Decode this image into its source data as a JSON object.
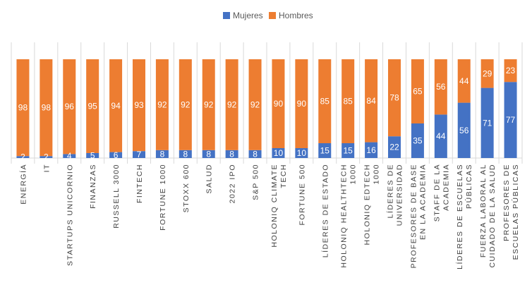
{
  "chart_data": {
    "type": "bar",
    "stacked": true,
    "title": "",
    "xlabel": "",
    "ylabel": "",
    "ylim": [
      0,
      100
    ],
    "grid": true,
    "legend_position": "top",
    "categories": [
      [
        "ENERGÍA"
      ],
      [
        "IT"
      ],
      [
        "STARTUPS UNICORNIO"
      ],
      [
        "FINANZAS"
      ],
      [
        "RUSSELL 3000"
      ],
      [
        "FINTECH"
      ],
      [
        "FORTUNE 1000"
      ],
      [
        "STOXX 600"
      ],
      [
        "SALUD"
      ],
      [
        "2022 IPO"
      ],
      [
        "S&P 500"
      ],
      [
        "HOLONIQ CLIMATE",
        "TECH"
      ],
      [
        "FORTUNE 500"
      ],
      [
        "LÍDERES DE ESTADO"
      ],
      [
        "HOLONIQ HEALTHTECH",
        "1000"
      ],
      [
        "HOLONIQ EDTECH",
        "1000"
      ],
      [
        "LÍDERES DE",
        "UNIVERSIDAD"
      ],
      [
        "PROFESORES DE BASE",
        "EN LA ACADEMIA"
      ],
      [
        "STAFF DE LA",
        "ACADEMIA"
      ],
      [
        "LÍDERES DE ESCUELAS",
        "PÚBLICAS"
      ],
      [
        "FUERZA LABORAL AL",
        "CUIDADO DE LA SALUD"
      ],
      [
        "PROFESORES DE",
        "ESCUELAS PÚBLICAS"
      ]
    ],
    "series": [
      {
        "name": "Mujeres",
        "color": "#4472C4",
        "values": [
          2,
          2,
          4,
          5,
          6,
          7,
          8,
          8,
          8,
          8,
          8,
          10,
          10,
          15,
          15,
          16,
          22,
          35,
          44,
          56,
          71,
          77
        ]
      },
      {
        "name": "Hombres",
        "color": "#ED7D31",
        "values": [
          98,
          98,
          96,
          95,
          94,
          93,
          92,
          92,
          92,
          92,
          92,
          90,
          90,
          85,
          85,
          84,
          78,
          65,
          56,
          44,
          29,
          23
        ]
      }
    ]
  }
}
